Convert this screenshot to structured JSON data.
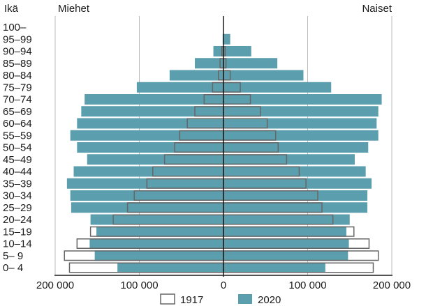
{
  "chart_data": {
    "type": "bar",
    "orientation": "horizontal",
    "layout": "population-pyramid",
    "ylabel": "Ikä",
    "left_label": "Miehet",
    "right_label": "Naiset",
    "categories": [
      "100–",
      "95–99",
      "90–94",
      "85–89",
      "80–84",
      "75–79",
      "70–74",
      "65–69",
      "60–64",
      "55–59",
      "50–54",
      "45–49",
      "40–44",
      "35–39",
      "30–34",
      "25–29",
      "20–24",
      "15–19",
      "10–14",
      "5– 9",
      "0– 4"
    ],
    "xlim": [
      -200000,
      200000
    ],
    "x_ticks": [
      -200000,
      -100000,
      0,
      100000,
      200000
    ],
    "x_tick_labels": [
      "200 000",
      "100 000",
      "0",
      "100 000",
      "200 000"
    ],
    "grid": true,
    "legend_position": "bottom-center",
    "colors": {
      "1917": "#ffffff",
      "1917_border": "#666666",
      "2020": "#5b9ead",
      "grid": "#bbbbbb",
      "axis": "#1a1a1a"
    },
    "series": [
      {
        "name": "1917",
        "style": "outline",
        "men": [
          0,
          0,
          2000,
          4000,
          6000,
          13000,
          23000,
          34000,
          43000,
          52000,
          58000,
          70000,
          84000,
          91000,
          106000,
          114000,
          131000,
          158000,
          174000,
          189000,
          183000
        ],
        "women": [
          0,
          0,
          2000,
          3000,
          8000,
          20000,
          32000,
          44000,
          52000,
          62000,
          65000,
          75000,
          90000,
          98000,
          112000,
          117000,
          130000,
          155000,
          173000,
          184000,
          178000
        ]
      },
      {
        "name": "2020",
        "style": "filled",
        "men": [
          0,
          1000,
          12000,
          34000,
          64000,
          103000,
          165000,
          169000,
          174000,
          182000,
          174000,
          162000,
          178000,
          186000,
          182000,
          181000,
          158000,
          151000,
          159000,
          153000,
          126000
        ],
        "women": [
          0,
          8000,
          33000,
          64000,
          95000,
          128000,
          188000,
          184000,
          182000,
          184000,
          172000,
          156000,
          169000,
          176000,
          171000,
          171000,
          150000,
          146000,
          149000,
          148000,
          121000
        ]
      }
    ]
  }
}
